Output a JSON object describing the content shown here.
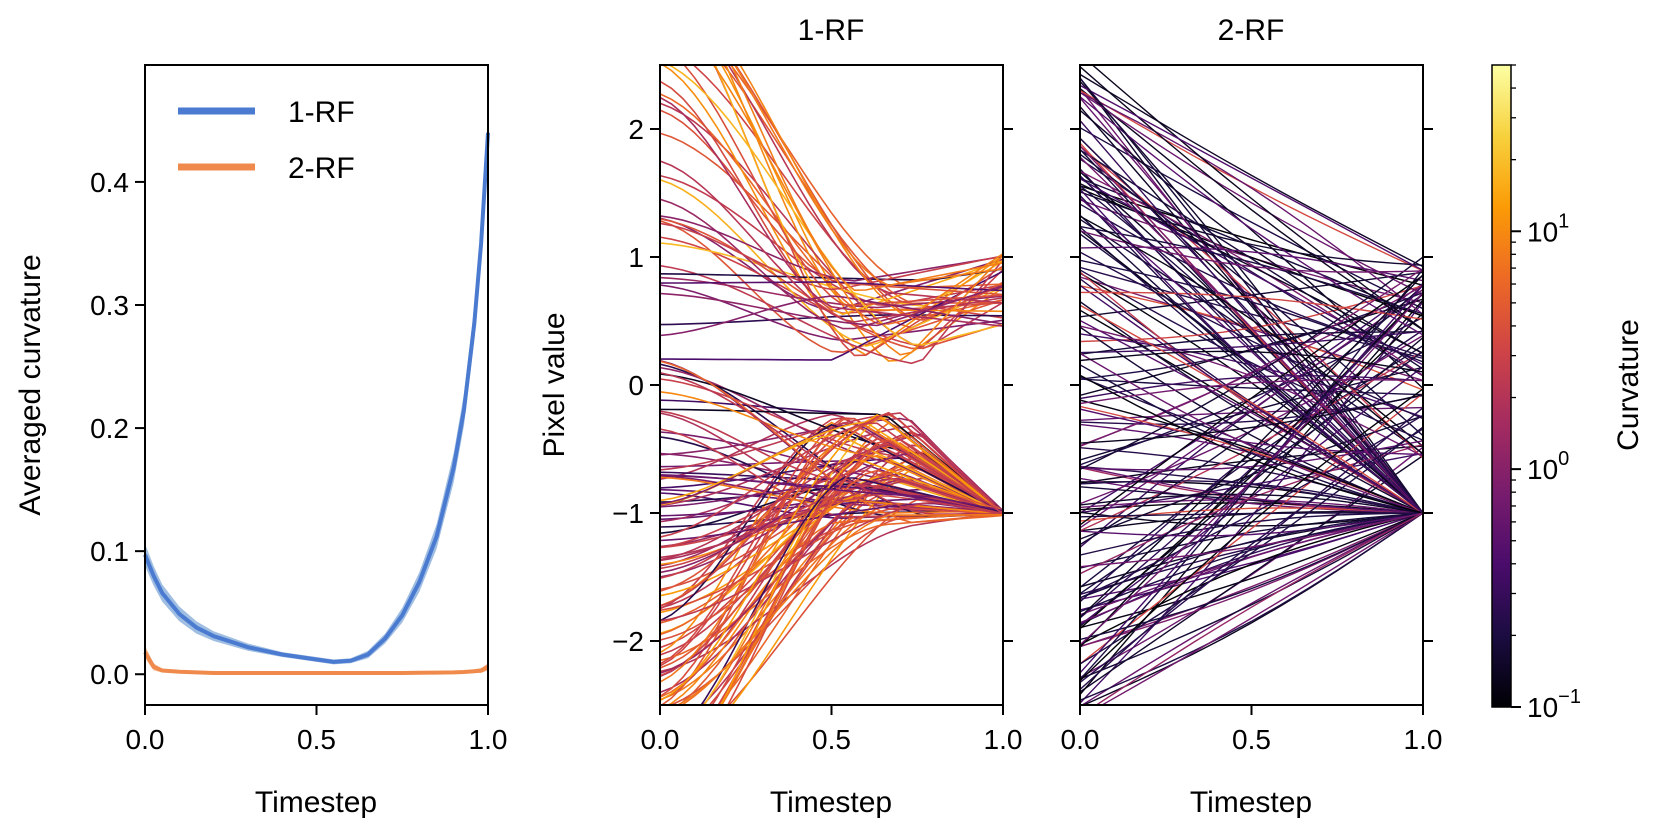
{
  "chart_data": [
    {
      "type": "line",
      "id": "curvature",
      "title": "",
      "xlabel": "Timestep",
      "ylabel": "Averaged curvature",
      "xlim": [
        0,
        1
      ],
      "ylim": [
        -0.025,
        0.495
      ],
      "xticks": [
        0.0,
        0.5,
        1.0
      ],
      "xtick_labels": [
        "0.0",
        "0.5",
        "1.0"
      ],
      "yticks": [
        0.0,
        0.1,
        0.2,
        0.3,
        0.4
      ],
      "ytick_labels": [
        "0.0",
        "0.1",
        "0.2",
        "0.3",
        "0.4"
      ],
      "legend": "top-left",
      "x": [
        0.0,
        0.025,
        0.05,
        0.1,
        0.15,
        0.2,
        0.3,
        0.4,
        0.5,
        0.55,
        0.6,
        0.65,
        0.7,
        0.75,
        0.8,
        0.85,
        0.9,
        0.93,
        0.96,
        0.98,
        1.0
      ],
      "series": [
        {
          "name": "1-RF",
          "color": "#4a7bd0",
          "band_color": "#8fb3dd",
          "values": [
            0.097,
            0.08,
            0.066,
            0.049,
            0.038,
            0.031,
            0.022,
            0.016,
            0.012,
            0.01,
            0.011,
            0.016,
            0.029,
            0.048,
            0.075,
            0.112,
            0.168,
            0.215,
            0.285,
            0.35,
            0.44
          ],
          "band": [
            0.009,
            0.008,
            0.007,
            0.006,
            0.005,
            0.004,
            0.003,
            0.002,
            0.002,
            0.002,
            0.002,
            0.003,
            0.004,
            0.006,
            0.008,
            0.01,
            0.012,
            0.013,
            0.014,
            0.014,
            0.014
          ]
        },
        {
          "name": "2-RF",
          "color": "#ef8a4c",
          "band_color": "#f5b48a",
          "values": [
            0.018,
            0.006,
            0.003,
            0.002,
            0.0015,
            0.001,
            0.001,
            0.001,
            0.001,
            0.001,
            0.001,
            0.001,
            0.001,
            0.001,
            0.0012,
            0.0013,
            0.0015,
            0.0018,
            0.0025,
            0.003,
            0.006
          ],
          "band": [
            0.005,
            0.003,
            0.0015,
            0.001,
            0.001,
            0.001,
            0.001,
            0.001,
            0.001,
            0.001,
            0.001,
            0.001,
            0.001,
            0.001,
            0.001,
            0.001,
            0.001,
            0.001,
            0.0015,
            0.002,
            0.003
          ]
        }
      ]
    },
    {
      "type": "line",
      "id": "traj-1rf",
      "title": "1-RF",
      "xlabel": "Timestep",
      "ylabel": "Pixel value",
      "xlim": [
        0,
        1
      ],
      "ylim": [
        -2.5,
        2.5
      ],
      "xticks": [
        0.0,
        0.5,
        1.0
      ],
      "xtick_labels": [
        "0.0",
        "0.5",
        "1.0"
      ],
      "yticks": [
        -2,
        -1,
        0,
        1,
        2
      ],
      "ytick_labels": [
        "−2",
        "−1",
        "0",
        "1",
        "2"
      ],
      "line_count": 150,
      "endpoints": [
        -1,
        1
      ],
      "description_mode": "curved trajectories converging to -1 and 1"
    },
    {
      "type": "line",
      "id": "traj-2rf",
      "title": "2-RF",
      "xlabel": "Timestep",
      "ylabel": "",
      "xlim": [
        0,
        1
      ],
      "ylim": [
        -2.5,
        2.5
      ],
      "xticks": [
        0.0,
        0.5,
        1.0
      ],
      "xtick_labels": [
        "0.0",
        "0.5",
        "1.0"
      ],
      "yticks": [
        -2,
        -1,
        0,
        1,
        2
      ],
      "line_count": 170,
      "endpoints": [
        -1,
        1
      ],
      "description_mode": "nearly straight trajectories"
    },
    {
      "type": "heatmap",
      "id": "colorbar",
      "label": "Curvature",
      "scale": "log",
      "range": [
        0.1,
        50
      ],
      "ticks": [
        0.1,
        1,
        10
      ],
      "tick_labels": [
        {
          "base": "10",
          "exp": "−1"
        },
        {
          "base": "10",
          "exp": "0"
        },
        {
          "base": "10",
          "exp": "1"
        }
      ],
      "colormap": [
        "#000004",
        "#1b0c41",
        "#4a0c6b",
        "#781c6d",
        "#a52c60",
        "#cf4446",
        "#ed6925",
        "#fb9b06",
        "#f7d13d",
        "#fcffa4"
      ]
    }
  ]
}
